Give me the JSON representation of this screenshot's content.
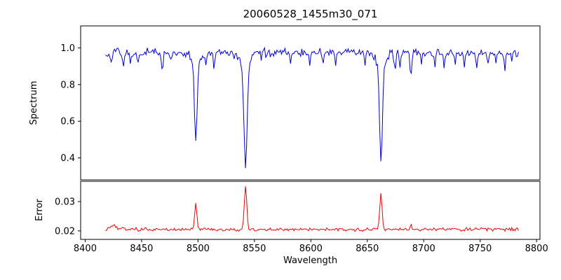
{
  "chart_data": {
    "type": "line",
    "title": "20060528_1455m30_071",
    "xlabel": "Wavelength",
    "xlim": [
      8396,
      8803
    ],
    "xticks": [
      8400,
      8450,
      8500,
      8550,
      8600,
      8650,
      8700,
      8750,
      8800
    ],
    "axis_color": "#000000",
    "noise_seed": 20060528,
    "subplots": [
      {
        "name": "spectrum",
        "ylabel": "Spectrum",
        "color": "#0000dd",
        "ylim": [
          0.28,
          1.12
        ],
        "yticks": [
          0.4,
          0.6,
          0.8,
          1.0
        ],
        "ytick_decimals": 1,
        "model": {
          "x_start": 8418,
          "x_end": 8784,
          "x_step": 1,
          "continuum": 0.975,
          "noise_amp": 0.028,
          "lines": [
            {
              "center": 8498.0,
              "depth": 0.43,
              "sigma": 1.1,
              "wing": 0.16
            },
            {
              "center": 8542.1,
              "depth": 0.555,
              "sigma": 1.3,
              "wing": 0.16
            },
            {
              "center": 8662.1,
              "depth": 0.525,
              "sigma": 1.2,
              "wing": 0.16
            },
            {
              "center": 8423.0,
              "depth": 0.07,
              "sigma": 0.7
            },
            {
              "center": 8434.0,
              "depth": 0.09,
              "sigma": 0.8
            },
            {
              "center": 8440.0,
              "depth": 0.05,
              "sigma": 0.6
            },
            {
              "center": 8447.0,
              "depth": 0.05,
              "sigma": 0.6
            },
            {
              "center": 8468.5,
              "depth": 0.1,
              "sigma": 0.8
            },
            {
              "center": 8475.0,
              "depth": 0.05,
              "sigma": 0.6
            },
            {
              "center": 8507.0,
              "depth": 0.07,
              "sigma": 0.7
            },
            {
              "center": 8514.2,
              "depth": 0.09,
              "sigma": 0.8
            },
            {
              "center": 8532.0,
              "depth": 0.05,
              "sigma": 0.6
            },
            {
              "center": 8556.0,
              "depth": 0.04,
              "sigma": 0.6
            },
            {
              "center": 8582.0,
              "depth": 0.06,
              "sigma": 0.7
            },
            {
              "center": 8599.0,
              "depth": 0.07,
              "sigma": 0.7
            },
            {
              "center": 8611.0,
              "depth": 0.06,
              "sigma": 0.7
            },
            {
              "center": 8622.0,
              "depth": 0.07,
              "sigma": 0.7
            },
            {
              "center": 8648.0,
              "depth": 0.06,
              "sigma": 0.7
            },
            {
              "center": 8674.5,
              "depth": 0.1,
              "sigma": 0.8
            },
            {
              "center": 8679.0,
              "depth": 0.07,
              "sigma": 0.7
            },
            {
              "center": 8688.5,
              "depth": 0.12,
              "sigma": 0.8
            },
            {
              "center": 8698.0,
              "depth": 0.05,
              "sigma": 0.6
            },
            {
              "center": 8710.0,
              "depth": 0.06,
              "sigma": 0.7
            },
            {
              "center": 8718.0,
              "depth": 0.07,
              "sigma": 0.7
            },
            {
              "center": 8728.0,
              "depth": 0.05,
              "sigma": 0.6
            },
            {
              "center": 8736.0,
              "depth": 0.08,
              "sigma": 0.7
            },
            {
              "center": 8747.0,
              "depth": 0.07,
              "sigma": 0.7
            },
            {
              "center": 8757.0,
              "depth": 0.08,
              "sigma": 0.7
            },
            {
              "center": 8764.0,
              "depth": 0.06,
              "sigma": 0.6
            },
            {
              "center": 8772.0,
              "depth": 0.09,
              "sigma": 0.7
            },
            {
              "center": 8778.0,
              "depth": 0.06,
              "sigma": 0.6
            }
          ]
        }
      },
      {
        "name": "error",
        "ylabel": "Error",
        "color": "#ee0000",
        "ylim": [
          0.0171,
          0.0369
        ],
        "yticks": [
          0.02,
          0.03
        ],
        "ytick_decimals": 2,
        "model": {
          "x_start": 8418,
          "x_end": 8784,
          "x_step": 1,
          "baseline": 0.0205,
          "noise_amp": 0.0007,
          "peaks": [
            {
              "center": 8498.0,
              "height": 0.0093,
              "sigma": 0.9
            },
            {
              "center": 8542.1,
              "height": 0.0148,
              "sigma": 1.1
            },
            {
              "center": 8662.1,
              "height": 0.0122,
              "sigma": 1.0
            },
            {
              "center": 8688.5,
              "height": 0.0022,
              "sigma": 0.5
            },
            {
              "center": 8425.0,
              "height": 0.0012,
              "sigma": 2.0
            },
            {
              "center": 8434.0,
              "height": 0.001,
              "sigma": 1.0
            }
          ]
        }
      }
    ]
  }
}
